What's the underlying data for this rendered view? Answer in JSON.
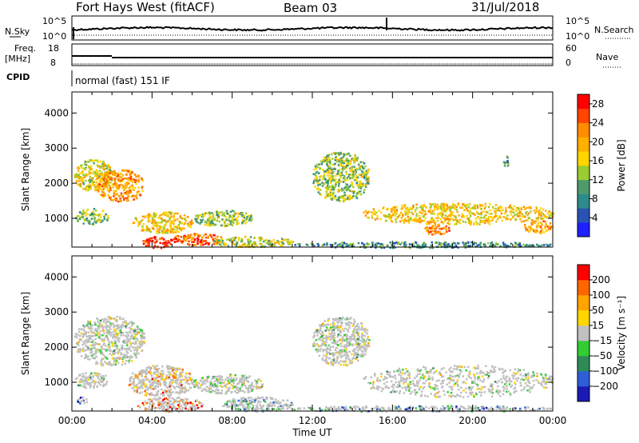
{
  "header": {
    "radar": "Fort Hays West (fitACF)",
    "beam": "Beam 03",
    "date": "31/Jul/2018"
  },
  "summary_panels": {
    "nsky_label": "N.Sky",
    "nsky_ticks": [
      "10^5",
      "10^0"
    ],
    "nsearch_label": "N.Search",
    "nsearch_ticks": [
      "10^5",
      "10^0"
    ],
    "freq_label": "Freq.",
    "freq_unit": "[MHz]",
    "freq_ticks": [
      "18",
      "8"
    ],
    "nave_label": "Nave",
    "nave_ticks": [
      "60",
      "0"
    ],
    "cpid_label": "CPID",
    "cpid_value": "normal (fast) 151 IF"
  },
  "chart_data": [
    {
      "type": "heatmap",
      "quantity": "power",
      "ylabel": "Slant Range [km]",
      "ylim": [
        180,
        4600
      ],
      "yticks": [
        "1000",
        "2000",
        "3000",
        "4000"
      ],
      "xlim": [
        0,
        24
      ],
      "colorbar_label": "Power [dB]",
      "colorbar_ticks": [
        "4",
        "8",
        "12",
        "16",
        "20",
        "24",
        "28"
      ],
      "colors": [
        "#1f1fff",
        "#2a52b5",
        "#2e8b8b",
        "#4f9a6a",
        "#9acd32",
        "#ffd700",
        "#ffb000",
        "#ff8c00",
        "#ff4500",
        "#ff0000"
      ],
      "regions": [
        {
          "t0": 0.1,
          "t1": 2.0,
          "r0": 1800,
          "r1": 2700,
          "level": 0.55
        },
        {
          "t0": 1.2,
          "t1": 3.6,
          "r0": 1500,
          "r1": 2400,
          "level": 0.7
        },
        {
          "t0": 0.1,
          "t1": 1.8,
          "r0": 850,
          "r1": 1300,
          "level": 0.4
        },
        {
          "t0": 3.0,
          "t1": 6.0,
          "r0": 600,
          "r1": 1200,
          "level": 0.6
        },
        {
          "t0": 6.0,
          "t1": 9.0,
          "r0": 800,
          "r1": 1250,
          "level": 0.45
        },
        {
          "t0": 3.5,
          "t1": 5.0,
          "r0": 180,
          "r1": 500,
          "level": 0.92
        },
        {
          "t0": 5.0,
          "t1": 7.5,
          "r0": 250,
          "r1": 600,
          "level": 0.8
        },
        {
          "t0": 7.0,
          "t1": 11.0,
          "r0": 200,
          "r1": 500,
          "level": 0.5
        },
        {
          "t0": 12.0,
          "t1": 14.8,
          "r0": 1500,
          "r1": 2900,
          "level": 0.45
        },
        {
          "t0": 14.5,
          "t1": 24.0,
          "r0": 850,
          "r1": 1450,
          "level": 0.6
        },
        {
          "t0": 17.5,
          "t1": 18.8,
          "r0": 550,
          "r1": 850,
          "level": 0.75
        },
        {
          "t0": 22.5,
          "t1": 24.0,
          "r0": 600,
          "r1": 950,
          "level": 0.7
        },
        {
          "t0": 21.5,
          "t1": 21.8,
          "r0": 2450,
          "r1": 2800,
          "level": 0.3
        },
        {
          "t0": 11.0,
          "t1": 24.0,
          "r0": 180,
          "r1": 350,
          "level": 0.3
        }
      ]
    },
    {
      "type": "heatmap",
      "quantity": "velocity",
      "ylabel": "Slant Range [km]",
      "ylim": [
        180,
        4600
      ],
      "yticks": [
        "1000",
        "2000",
        "3000",
        "4000"
      ],
      "xlim": [
        0,
        24
      ],
      "xticks": [
        "00:00",
        "04:00",
        "08:00",
        "12:00",
        "16:00",
        "20:00",
        "00:00"
      ],
      "xlabel": "Time UT",
      "colorbar_label": "Velocity [m s⁻¹]",
      "colorbar_ticks": [
        "200",
        "100",
        "50",
        "15",
        "−15",
        "−50",
        "−100",
        "−200"
      ],
      "colors": [
        "#1a1ab5",
        "#2e5fd8",
        "#2e8b57",
        "#32cd32",
        "#c0c0c0",
        "#ffd700",
        "#ffa500",
        "#ff6600",
        "#ff0000"
      ],
      "regions": [
        {
          "t0": 0.1,
          "t1": 3.6,
          "r0": 1500,
          "r1": 2900,
          "level": 0.5
        },
        {
          "t0": 0.1,
          "t1": 1.8,
          "r0": 850,
          "r1": 1300,
          "level": 0.5
        },
        {
          "t0": 2.8,
          "t1": 6.0,
          "r0": 600,
          "r1": 1500,
          "level": 0.7
        },
        {
          "t0": 3.2,
          "t1": 6.5,
          "r0": 180,
          "r1": 600,
          "level": 0.85
        },
        {
          "t0": 6.0,
          "t1": 9.5,
          "r0": 700,
          "r1": 1250,
          "level": 0.5
        },
        {
          "t0": 7.5,
          "t1": 11.0,
          "r0": 180,
          "r1": 600,
          "level": 0.3
        },
        {
          "t0": 12.0,
          "t1": 14.8,
          "r0": 1500,
          "r1": 2900,
          "level": 0.5
        },
        {
          "t0": 14.5,
          "t1": 24.0,
          "r0": 600,
          "r1": 1500,
          "level": 0.5
        },
        {
          "t0": 11.0,
          "t1": 24.0,
          "r0": 180,
          "r1": 350,
          "level": 0.25
        },
        {
          "t0": 0.2,
          "t1": 0.8,
          "r0": 400,
          "r1": 600,
          "level": 0.2
        }
      ]
    }
  ]
}
